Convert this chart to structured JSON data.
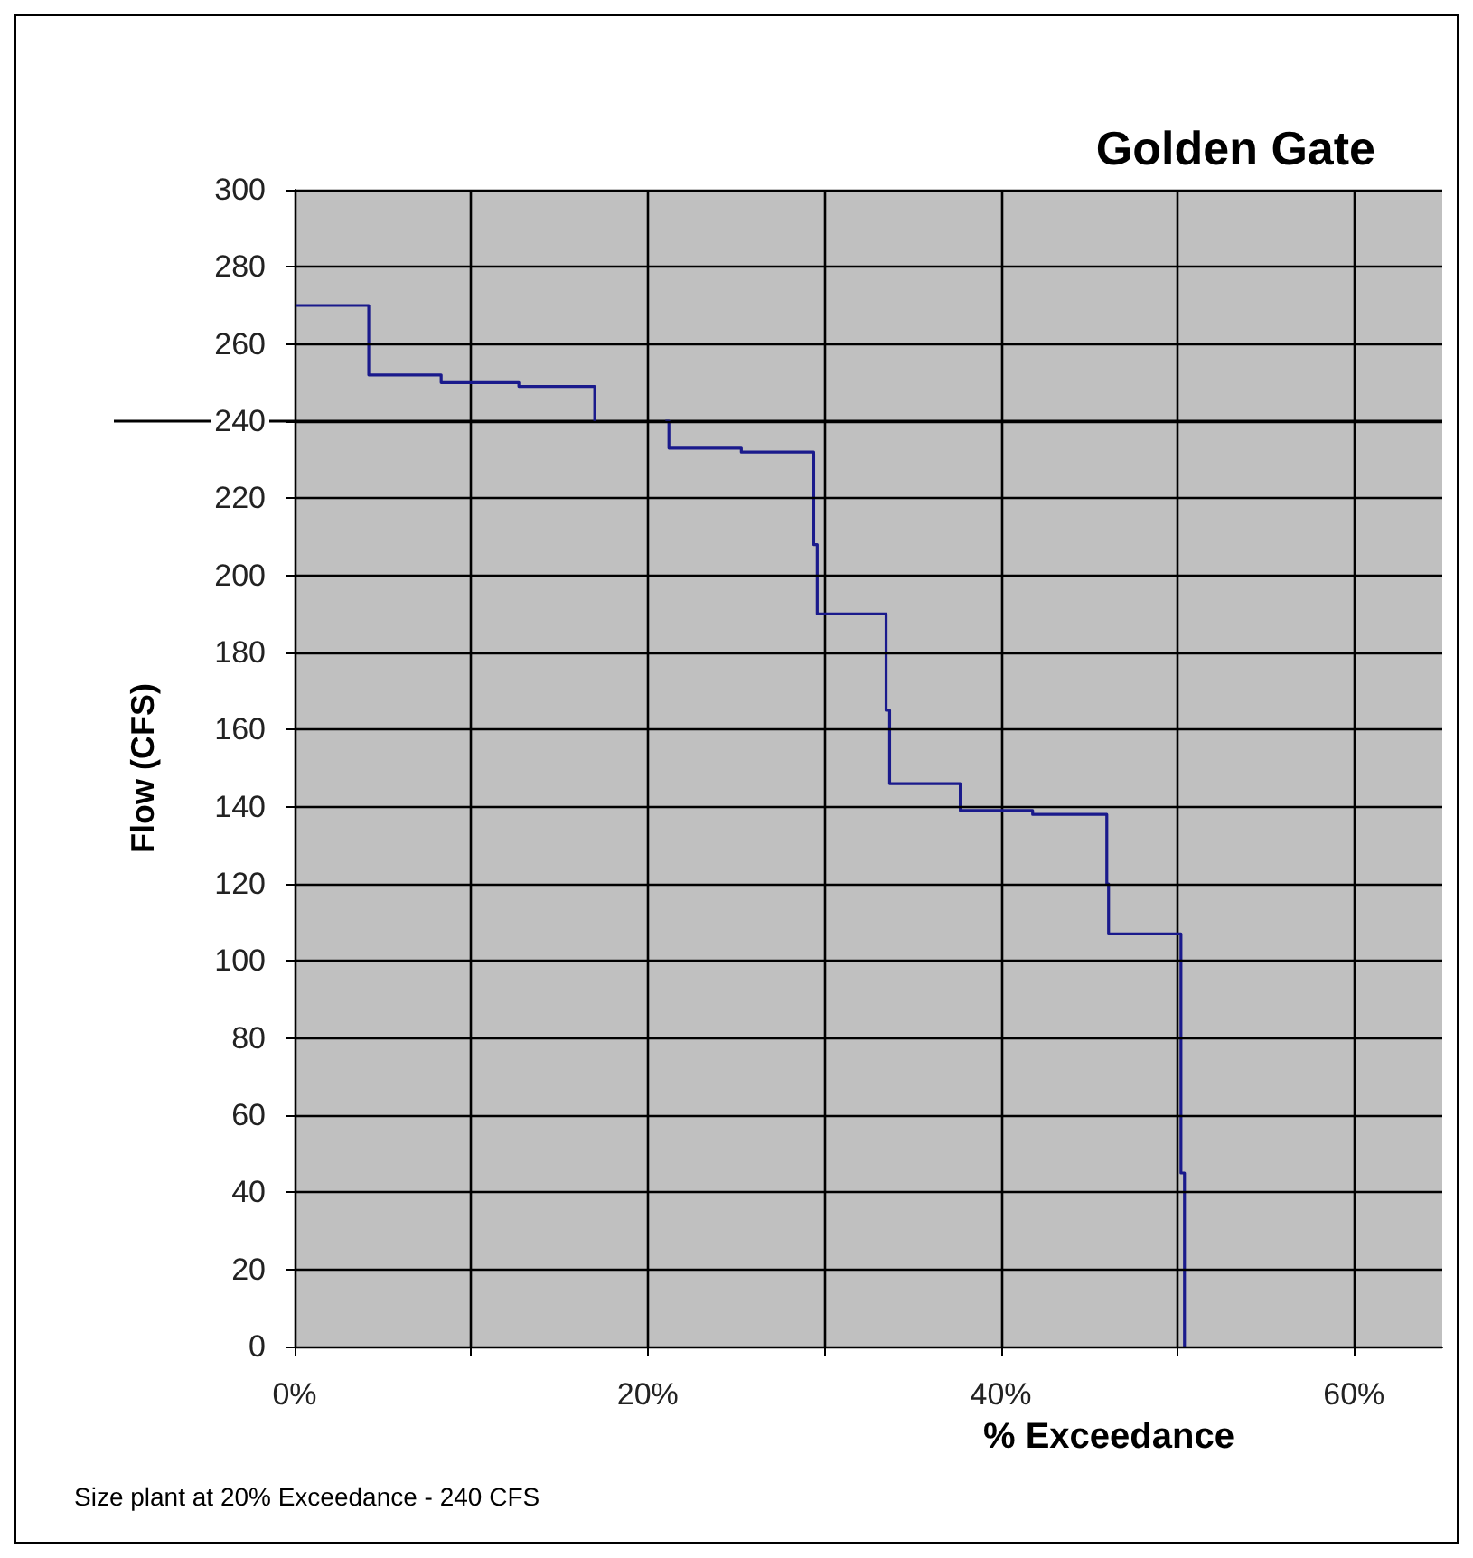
{
  "chart_data": {
    "type": "step",
    "title": "Golden Gate",
    "xlabel": "% Exceedance",
    "ylabel": "Flow (CFS)",
    "annotations": [
      "Size plant at 20% Exceedance - 240 CFS"
    ],
    "x": [
      0,
      4.2,
      8.3,
      12.7,
      17.0,
      null,
      21.0,
      21.2,
      25.3,
      29.4,
      29.6,
      33.5,
      33.7,
      37.7,
      41.8,
      46.0,
      46.1,
      50.2,
      50.4
    ],
    "series": [
      {
        "color": "#1a1a8c",
        "values": [
          270,
          252,
          250,
          249,
          240,
          null,
          240,
          233,
          232,
          208,
          190,
          165,
          146,
          139,
          138,
          120,
          107,
          45,
          0
        ]
      }
    ],
    "xlim": [
      0,
      65
    ],
    "xticks": [
      {
        "value": 0,
        "label": "0%"
      },
      {
        "value": 10,
        "label": null
      },
      {
        "value": 20,
        "label": "20%"
      },
      {
        "value": 30,
        "label": null
      },
      {
        "value": 40,
        "label": "40%"
      },
      {
        "value": 50,
        "label": null
      },
      {
        "value": 60,
        "label": "60%"
      }
    ],
    "ylim": [
      0,
      300
    ],
    "yticks": [
      0,
      20,
      40,
      60,
      80,
      100,
      120,
      140,
      160,
      180,
      200,
      220,
      240,
      260,
      280,
      300
    ],
    "ref_lines": [
      {
        "axis": "y",
        "value": 240,
        "color": "#000000"
      }
    ],
    "grid": true
  }
}
